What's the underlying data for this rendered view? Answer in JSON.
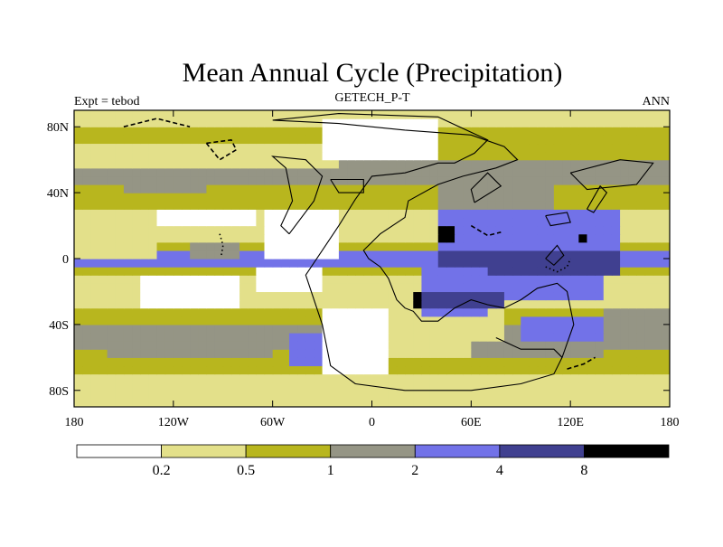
{
  "chart_data": {
    "type": "heatmap",
    "title": "Mean Annual Cycle (Precipitation)",
    "subtitle_left": "Expt = tebod",
    "subtitle_center": "GETECH_P-T",
    "subtitle_right": "ANN",
    "x_ticks": [
      "180",
      "120W",
      "60W",
      "0",
      "60E",
      "120E",
      "180"
    ],
    "x_tick_values": [
      -180,
      -120,
      -60,
      0,
      60,
      120,
      180
    ],
    "y_ticks": [
      "80N",
      "40N",
      "0",
      "40S",
      "80S"
    ],
    "y_tick_values": [
      80,
      40,
      0,
      -40,
      -80
    ],
    "xlim": [
      -180,
      180
    ],
    "ylim": [
      -90,
      90
    ],
    "levels": [
      "0.2",
      "0.5",
      "1",
      "2",
      "4",
      "8"
    ],
    "level_values": [
      0.2,
      0.5,
      1,
      2,
      4,
      8
    ],
    "colors": [
      "#ffffff",
      "#e3e08a",
      "#b8b61e",
      "#959585",
      "#7272e8",
      "#404090",
      "#000000"
    ],
    "contour_color": "#000000",
    "cell_colors": [
      "#ffffff",
      "#e3e08a",
      "#b8b61e",
      "#959585",
      "#7272e8",
      "#404090",
      "#000000"
    ],
    "zonal_bands": [
      {
        "lat_min": 80,
        "lat_max": 90,
        "bin": 1
      },
      {
        "lat_min": 60,
        "lat_max": 80,
        "bin": 2
      },
      {
        "lat_min": 45,
        "lat_max": 60,
        "bin": 3
      },
      {
        "lat_min": 30,
        "lat_max": 45,
        "bin": 2
      },
      {
        "lat_min": 12,
        "lat_max": 30,
        "bin": 1
      },
      {
        "lat_min": 4,
        "lat_max": 12,
        "bin": 2
      },
      {
        "lat_min": -4,
        "lat_max": 4,
        "bin": 4
      },
      {
        "lat_min": -12,
        "lat_max": -4,
        "bin": 2
      },
      {
        "lat_min": -28,
        "lat_max": -12,
        "bin": 1
      },
      {
        "lat_min": -40,
        "lat_max": -28,
        "bin": 2
      },
      {
        "lat_min": -55,
        "lat_max": -40,
        "bin": 3
      },
      {
        "lat_min": -70,
        "lat_max": -55,
        "bin": 2
      },
      {
        "lat_min": -90,
        "lat_max": -70,
        "bin": 1
      }
    ],
    "regions": [
      {
        "lon_min": -180,
        "lon_max": -20,
        "lat_min": 55,
        "lat_max": 68,
        "bin": 1
      },
      {
        "lon_min": -130,
        "lon_max": -70,
        "lat_min": 20,
        "lat_max": 32,
        "bin": 0
      },
      {
        "lon_min": -65,
        "lon_max": -20,
        "lat_min": 2,
        "lat_max": 30,
        "bin": 0
      },
      {
        "lon_min": -70,
        "lon_max": -30,
        "lat_min": -20,
        "lat_max": -5,
        "bin": 0
      },
      {
        "lon_min": -140,
        "lon_max": -80,
        "lat_min": -28,
        "lat_max": -12,
        "bin": 0
      },
      {
        "lon_min": -30,
        "lon_max": 10,
        "lat_min": -70,
        "lat_max": -30,
        "bin": 0
      },
      {
        "lon_min": 10,
        "lon_max": 80,
        "lat_min": -60,
        "lat_max": -30,
        "bin": 1
      },
      {
        "lon_min": -30,
        "lon_max": 40,
        "lat_min": 60,
        "lat_max": 85,
        "bin": 0
      },
      {
        "lon_min": 40,
        "lon_max": 70,
        "lat_min": 25,
        "lat_max": 48,
        "bin": 3
      },
      {
        "lon_min": 60,
        "lon_max": 110,
        "lat_min": 18,
        "lat_max": 45,
        "bin": 3
      },
      {
        "lon_min": 40,
        "lon_max": 150,
        "lat_min": 5,
        "lat_max": 30,
        "bin": 4
      },
      {
        "lon_min": 40,
        "lon_max": 150,
        "lat_min": -10,
        "lat_max": 5,
        "bin": 5
      },
      {
        "lon_min": 50,
        "lon_max": 140,
        "lat_min": -25,
        "lat_max": -10,
        "bin": 4
      },
      {
        "lon_min": 30,
        "lon_max": 70,
        "lat_min": -35,
        "lat_max": -5,
        "bin": 4
      },
      {
        "lon_min": 30,
        "lon_max": 80,
        "lat_min": -28,
        "lat_max": -18,
        "bin": 5
      },
      {
        "lon_min": 40,
        "lon_max": 50,
        "lat_min": 12,
        "lat_max": 18,
        "bin": 6
      },
      {
        "lon_min": 25,
        "lon_max": 32,
        "lat_min": -28,
        "lat_max": -20,
        "bin": 6
      },
      {
        "lon_min": 125,
        "lon_max": 132,
        "lat_min": 10,
        "lat_max": 14,
        "bin": 6
      },
      {
        "lon_min": -160,
        "lon_max": -60,
        "lat_min": -60,
        "lat_max": -40,
        "bin": 3
      },
      {
        "lon_min": -50,
        "lon_max": -30,
        "lat_min": -65,
        "lat_max": -45,
        "bin": 4
      },
      {
        "lon_min": -150,
        "lon_max": -100,
        "lat_min": 40,
        "lat_max": 52,
        "bin": 3
      },
      {
        "lon_min": 90,
        "lon_max": 140,
        "lat_min": -50,
        "lat_max": -35,
        "bin": 4
      },
      {
        "lon_min": 140,
        "lon_max": 180,
        "lat_min": -55,
        "lat_max": -30,
        "bin": 3
      },
      {
        "lon_min": 60,
        "lon_max": 140,
        "lat_min": -60,
        "lat_max": -50,
        "bin": 3
      },
      {
        "lon_min": -110,
        "lon_max": -80,
        "lat_min": 2,
        "lat_max": 8,
        "bin": 3
      },
      {
        "lon_min": -180,
        "lon_max": -130,
        "lat_min": 2,
        "lat_max": 8,
        "bin": 1
      }
    ],
    "coastlines": [
      [
        [
          -60,
          84
        ],
        [
          -20,
          88
        ],
        [
          40,
          86
        ],
        [
          70,
          72
        ],
        [
          62,
          64
        ],
        [
          50,
          58
        ],
        [
          40,
          58
        ],
        [
          20,
          52
        ],
        [
          0,
          50
        ],
        [
          -10,
          36
        ],
        [
          -20,
          20
        ],
        [
          -30,
          5
        ],
        [
          -40,
          -10
        ],
        [
          -30,
          -40
        ],
        [
          -25,
          -65
        ],
        [
          -10,
          -76
        ],
        [
          20,
          -80
        ],
        [
          60,
          -80
        ],
        [
          90,
          -76
        ],
        [
          110,
          -70
        ],
        [
          115,
          -60
        ],
        [
          122,
          -40
        ],
        [
          118,
          -20
        ],
        [
          112,
          -15
        ],
        [
          100,
          -18
        ],
        [
          90,
          -25
        ],
        [
          80,
          -30
        ],
        [
          70,
          -28
        ],
        [
          60,
          -25
        ],
        [
          50,
          -30
        ],
        [
          40,
          -38
        ],
        [
          30,
          -38
        ],
        [
          25,
          -32
        ],
        [
          20,
          -30
        ],
        [
          15,
          -25
        ],
        [
          10,
          -12
        ],
        [
          5,
          -5
        ],
        [
          -2,
          0
        ],
        [
          -5,
          5
        ],
        [
          5,
          15
        ],
        [
          20,
          25
        ],
        [
          22,
          35
        ],
        [
          40,
          45
        ],
        [
          55,
          50
        ],
        [
          75,
          55
        ],
        [
          88,
          60
        ],
        [
          80,
          68
        ],
        [
          60,
          75
        ],
        [
          20,
          78
        ],
        [
          -20,
          82
        ],
        [
          -60,
          84
        ]
      ],
      [
        [
          -50,
          15
        ],
        [
          -35,
          35
        ],
        [
          -30,
          50
        ],
        [
          -40,
          60
        ],
        [
          -60,
          62
        ],
        [
          -52,
          55
        ],
        [
          -48,
          35
        ],
        [
          -55,
          20
        ],
        [
          -50,
          15
        ]
      ],
      [
        [
          -25,
          48
        ],
        [
          -5,
          48
        ],
        [
          -5,
          40
        ],
        [
          -20,
          40
        ],
        [
          -25,
          48
        ]
      ],
      [
        [
          62,
          34
        ],
        [
          78,
          44
        ],
        [
          70,
          52
        ],
        [
          60,
          42
        ],
        [
          62,
          34
        ]
      ],
      [
        [
          75,
          -48
        ],
        [
          90,
          -55
        ],
        [
          110,
          -55
        ],
        [
          115,
          -60
        ]
      ],
      [
        [
          120,
          52
        ],
        [
          150,
          60
        ],
        [
          170,
          58
        ],
        [
          160,
          45
        ],
        [
          130,
          42
        ],
        [
          120,
          52
        ]
      ],
      [
        [
          105,
          26
        ],
        [
          118,
          28
        ],
        [
          120,
          22
        ],
        [
          108,
          20
        ],
        [
          105,
          26
        ]
      ],
      [
        [
          130,
          30
        ],
        [
          138,
          44
        ],
        [
          142,
          40
        ],
        [
          134,
          28
        ],
        [
          130,
          30
        ]
      ],
      [
        [
          105,
          0
        ],
        [
          112,
          8
        ],
        [
          116,
          2
        ],
        [
          110,
          -4
        ],
        [
          105,
          0
        ]
      ]
    ],
    "dashed_coastlines": [
      [
        [
          -100,
          70
        ],
        [
          -85,
          72
        ],
        [
          -82,
          66
        ],
        [
          -92,
          60
        ],
        [
          -100,
          70
        ]
      ],
      [
        [
          -150,
          80
        ],
        [
          -130,
          85
        ],
        [
          -110,
          80
        ]
      ],
      [
        [
          118,
          -67
        ],
        [
          128,
          -64
        ],
        [
          135,
          -60
        ]
      ],
      [
        [
          60,
          20
        ],
        [
          70,
          14
        ],
        [
          78,
          16
        ]
      ]
    ],
    "dotted_coastlines": [
      [
        [
          -92,
          15
        ],
        [
          -90,
          8
        ],
        [
          -91,
          2
        ]
      ],
      [
        [
          105,
          -5
        ],
        [
          112,
          -8
        ],
        [
          118,
          -5
        ],
        [
          120,
          0
        ]
      ]
    ]
  }
}
